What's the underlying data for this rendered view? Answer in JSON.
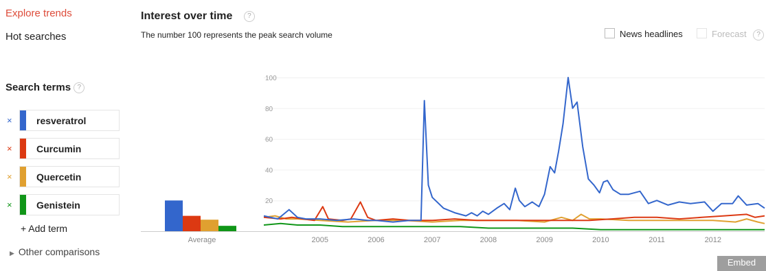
{
  "nav": {
    "explore_label": "Explore trends",
    "hot_label": "Hot searches"
  },
  "search_terms": {
    "title": "Search terms",
    "items": [
      {
        "label": "resveratrol",
        "color": "#3366cc"
      },
      {
        "label": "Curcumin",
        "color": "#dc3912"
      },
      {
        "label": "Quercetin",
        "color": "#e0a030"
      },
      {
        "label": "Genistein",
        "color": "#109618"
      }
    ],
    "remove_glyph": "×",
    "add_label": "+ Add term",
    "other_label": "Other comparisons"
  },
  "interest": {
    "title": "Interest over time",
    "subtitle": "The number 100 represents the peak search volume",
    "news_label": "News headlines",
    "forecast_label": "Forecast",
    "help_glyph": "?"
  },
  "embed_label": "Embed",
  "chart_data": [
    {
      "type": "bar",
      "xlabel": "Average",
      "categories": [
        "resveratrol",
        "Curcumin",
        "Quercetin",
        "Genistein"
      ],
      "values": [
        20,
        10,
        7.5,
        3.5
      ],
      "colors": [
        "#3366cc",
        "#dc3912",
        "#e0a030",
        "#109618"
      ]
    },
    {
      "type": "line",
      "ylim": [
        0,
        100
      ],
      "yticks": [
        20,
        40,
        60,
        80,
        100
      ],
      "xticks": [
        "2005",
        "2006",
        "2007",
        "2008",
        "2009",
        "2010",
        "2011",
        "2012"
      ],
      "xlim": [
        2004.0,
        2012.92
      ],
      "grid": true,
      "series": [
        {
          "name": "resveratrol",
          "color": "#3366cc",
          "points": [
            [
              2004.0,
              10
            ],
            [
              2004.25,
              8
            ],
            [
              2004.45,
              14
            ],
            [
              2004.6,
              9
            ],
            [
              2004.75,
              8
            ],
            [
              2005.0,
              8
            ],
            [
              2005.3,
              7
            ],
            [
              2005.6,
              8
            ],
            [
              2005.85,
              7
            ],
            [
              2006.0,
              7
            ],
            [
              2006.3,
              6
            ],
            [
              2006.6,
              7
            ],
            [
              2006.8,
              7
            ],
            [
              2006.86,
              85
            ],
            [
              2006.93,
              30
            ],
            [
              2007.0,
              22
            ],
            [
              2007.2,
              15
            ],
            [
              2007.4,
              12
            ],
            [
              2007.6,
              10
            ],
            [
              2007.7,
              12
            ],
            [
              2007.8,
              10
            ],
            [
              2007.9,
              13
            ],
            [
              2008.0,
              11
            ],
            [
              2008.15,
              15
            ],
            [
              2008.28,
              18
            ],
            [
              2008.38,
              14
            ],
            [
              2008.48,
              28
            ],
            [
              2008.55,
              20
            ],
            [
              2008.65,
              16
            ],
            [
              2008.78,
              19
            ],
            [
              2008.9,
              16
            ],
            [
              2009.0,
              24
            ],
            [
              2009.1,
              42
            ],
            [
              2009.18,
              38
            ],
            [
              2009.25,
              52
            ],
            [
              2009.33,
              70
            ],
            [
              2009.42,
              100
            ],
            [
              2009.5,
              80
            ],
            [
              2009.58,
              84
            ],
            [
              2009.68,
              55
            ],
            [
              2009.78,
              34
            ],
            [
              2009.88,
              30
            ],
            [
              2009.98,
              25
            ],
            [
              2010.05,
              32
            ],
            [
              2010.12,
              33
            ],
            [
              2010.22,
              27
            ],
            [
              2010.35,
              24
            ],
            [
              2010.5,
              24
            ],
            [
              2010.7,
              26
            ],
            [
              2010.85,
              18
            ],
            [
              2011.0,
              20
            ],
            [
              2011.2,
              17
            ],
            [
              2011.4,
              19
            ],
            [
              2011.6,
              18
            ],
            [
              2011.85,
              19
            ],
            [
              2012.0,
              13
            ],
            [
              2012.15,
              18
            ],
            [
              2012.35,
              18
            ],
            [
              2012.45,
              23
            ],
            [
              2012.6,
              17
            ],
            [
              2012.8,
              18
            ],
            [
              2012.92,
              15
            ]
          ]
        },
        {
          "name": "Curcumin",
          "color": "#dc3912",
          "points": [
            [
              2004.0,
              9
            ],
            [
              2004.3,
              8
            ],
            [
              2004.5,
              9
            ],
            [
              2004.7,
              8
            ],
            [
              2004.9,
              7
            ],
            [
              2005.05,
              16
            ],
            [
              2005.15,
              8
            ],
            [
              2005.4,
              7
            ],
            [
              2005.55,
              8
            ],
            [
              2005.72,
              19
            ],
            [
              2005.85,
              9
            ],
            [
              2006.0,
              7
            ],
            [
              2006.3,
              8
            ],
            [
              2006.6,
              7
            ],
            [
              2007.0,
              7
            ],
            [
              2007.4,
              8
            ],
            [
              2007.8,
              7
            ],
            [
              2008.2,
              7
            ],
            [
              2008.6,
              7
            ],
            [
              2009.0,
              7
            ],
            [
              2009.4,
              7
            ],
            [
              2009.8,
              7
            ],
            [
              2010.2,
              8
            ],
            [
              2010.6,
              9
            ],
            [
              2011.0,
              9
            ],
            [
              2011.4,
              8
            ],
            [
              2011.8,
              9
            ],
            [
              2012.2,
              10
            ],
            [
              2012.6,
              11
            ],
            [
              2012.75,
              9
            ],
            [
              2012.92,
              10
            ]
          ]
        },
        {
          "name": "Quercetin",
          "color": "#e0a030",
          "points": [
            [
              2004.0,
              9
            ],
            [
              2004.2,
              10
            ],
            [
              2004.4,
              8
            ],
            [
              2004.6,
              8
            ],
            [
              2005.0,
              7
            ],
            [
              2005.5,
              6
            ],
            [
              2006.0,
              7
            ],
            [
              2006.5,
              7
            ],
            [
              2007.0,
              6
            ],
            [
              2007.5,
              7
            ],
            [
              2008.0,
              7
            ],
            [
              2008.5,
              7
            ],
            [
              2009.0,
              6
            ],
            [
              2009.3,
              9
            ],
            [
              2009.5,
              7
            ],
            [
              2009.65,
              11
            ],
            [
              2009.8,
              8
            ],
            [
              2010.0,
              8
            ],
            [
              2010.5,
              7
            ],
            [
              2011.0,
              7
            ],
            [
              2011.5,
              7
            ],
            [
              2012.0,
              7
            ],
            [
              2012.4,
              6
            ],
            [
              2012.6,
              8
            ],
            [
              2012.8,
              6
            ],
            [
              2012.92,
              5
            ]
          ]
        },
        {
          "name": "Genistein",
          "color": "#109618",
          "points": [
            [
              2004.0,
              4
            ],
            [
              2004.3,
              5
            ],
            [
              2004.6,
              4
            ],
            [
              2005.0,
              4
            ],
            [
              2005.4,
              3
            ],
            [
              2005.8,
              3
            ],
            [
              2006.2,
              3
            ],
            [
              2006.6,
              3
            ],
            [
              2007.0,
              3
            ],
            [
              2007.5,
              3
            ],
            [
              2008.0,
              2
            ],
            [
              2008.5,
              2
            ],
            [
              2009.0,
              2
            ],
            [
              2009.5,
              2
            ],
            [
              2010.0,
              1
            ],
            [
              2010.5,
              1
            ],
            [
              2011.0,
              1
            ],
            [
              2011.5,
              1
            ],
            [
              2012.0,
              1
            ],
            [
              2012.5,
              1
            ],
            [
              2012.92,
              1
            ]
          ]
        }
      ]
    }
  ]
}
